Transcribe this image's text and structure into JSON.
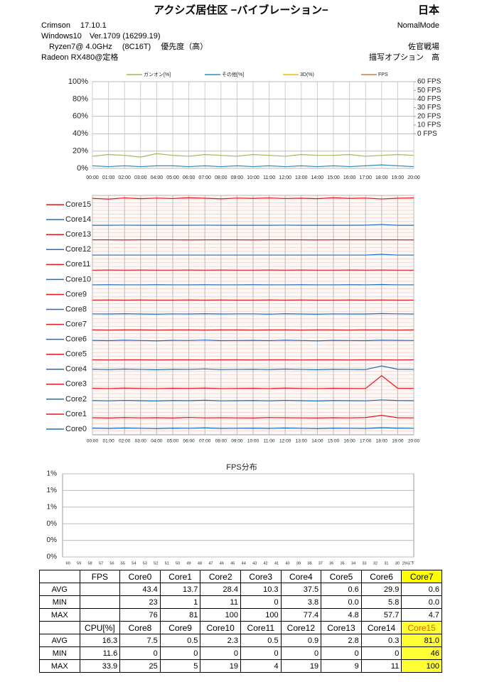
{
  "header": {
    "title": "アクシズ居住区 −バイブレーション−",
    "region": "日本",
    "left_lines": [
      "Crimson　 17.10.1",
      "Windows10　Ver.1709 (16299.19)",
      "　Ryzen7@ 4.0GHz　 (8C16T)　 優先度（高）",
      "Radeon RX480@定格"
    ],
    "right_lines": [
      "NomalMode",
      "",
      "佐官戦場",
      "描写オプション　高"
    ]
  },
  "chart_data": [
    {
      "type": "line",
      "grid": true,
      "categories": [
        "00:00",
        "01:00",
        "02:00",
        "03:00",
        "04:00",
        "05:00",
        "06:00",
        "07:00",
        "08:00",
        "09:00",
        "10:00",
        "11:00",
        "12:00",
        "13:00",
        "14:00",
        "15:00",
        "16:00",
        "17:00",
        "18:00",
        "19:00",
        "20:00"
      ],
      "ylim": [
        0,
        100
      ],
      "yticks": [
        {
          "value": 0,
          "label": "0%"
        },
        {
          "value": 20,
          "label": "20%"
        },
        {
          "value": 40,
          "label": "40%"
        },
        {
          "value": 60,
          "label": "60%"
        },
        {
          "value": 80,
          "label": "80%"
        },
        {
          "value": 100,
          "label": "100%"
        }
      ],
      "y2lim": [
        -40,
        60
      ],
      "y2ticks": [
        {
          "value": 0,
          "label": "0 FPS"
        },
        {
          "value": 10,
          "label": "10 FPS"
        },
        {
          "value": 20,
          "label": "20 FPS"
        },
        {
          "value": 30,
          "label": "30 FPS"
        },
        {
          "value": 40,
          "label": "40 FPS"
        },
        {
          "value": 50,
          "label": "50 FPS"
        },
        {
          "value": 60,
          "label": "60 FPS"
        }
      ],
      "series": [
        {
          "name": "ガンオン[%]",
          "color": "#9bbb59",
          "values": [
            14,
            16,
            15,
            13,
            17,
            15,
            14,
            16,
            15,
            14,
            16,
            15,
            14,
            16,
            15,
            15,
            16,
            14,
            15,
            16,
            15
          ]
        },
        {
          "name": "その他[%]",
          "color": "#2e8bc0",
          "values": [
            3,
            2,
            3,
            2,
            3,
            3,
            2,
            3,
            2,
            3,
            2,
            3,
            2,
            3,
            2,
            3,
            2,
            3,
            4,
            3,
            2
          ]
        },
        {
          "name": "3D(%)",
          "color": "#f0c000",
          "values": [
            null,
            null,
            null,
            null,
            null,
            null,
            null,
            null,
            null,
            null,
            null,
            null,
            null,
            null,
            null,
            null,
            null,
            null,
            null,
            null,
            null
          ]
        },
        {
          "name": "FPS",
          "color": "#c0804d",
          "axis": "y2",
          "values": [
            null,
            null,
            null,
            null,
            null,
            null,
            null,
            null,
            null,
            null,
            null,
            null,
            null,
            null,
            null,
            null,
            null,
            null,
            null,
            null,
            null
          ]
        }
      ]
    },
    {
      "type": "strip",
      "grid": true,
      "ylim": [
        0,
        100
      ],
      "categories": [
        "00:00",
        "01:00",
        "02:00",
        "03:00",
        "04:00",
        "05:00",
        "06:00",
        "07:00",
        "08:00",
        "09:00",
        "10:00",
        "11:00",
        "12:00",
        "13:00",
        "14:00",
        "15:00",
        "16:00",
        "17:00",
        "18:00",
        "19:00",
        "20:00"
      ],
      "series": [
        {
          "name": "Core0",
          "color": "#1a6fc4",
          "values": [
            44,
            42,
            45,
            43,
            41,
            44,
            43,
            46,
            42,
            43,
            44,
            42,
            45,
            43,
            41,
            44,
            43,
            42,
            47,
            44,
            43
          ]
        },
        {
          "name": "Core1",
          "color": "#e8141b",
          "values": [
            14,
            12,
            15,
            13,
            14,
            12,
            16,
            13,
            14,
            13,
            12,
            15,
            14,
            13,
            12,
            14,
            13,
            15,
            30,
            14,
            13
          ]
        },
        {
          "name": "Core2",
          "color": "#1a6fc4",
          "values": [
            29,
            27,
            30,
            28,
            26,
            29,
            28,
            31,
            27,
            28,
            29,
            27,
            30,
            28,
            26,
            29,
            28,
            27,
            33,
            29,
            28
          ]
        },
        {
          "name": "Core3",
          "color": "#e8141b",
          "values": [
            11,
            9,
            12,
            10,
            9,
            11,
            10,
            12,
            9,
            10,
            11,
            9,
            12,
            10,
            9,
            11,
            10,
            9,
            95,
            11,
            10
          ]
        },
        {
          "name": "Core4",
          "color": "#1a6fc4",
          "values": [
            38,
            36,
            39,
            37,
            35,
            38,
            37,
            40,
            36,
            37,
            38,
            36,
            39,
            37,
            35,
            38,
            37,
            36,
            60,
            38,
            37
          ]
        },
        {
          "name": "Core5",
          "color": "#e8141b",
          "values": [
            1,
            0,
            1,
            1,
            0,
            1,
            1,
            0,
            1,
            1,
            0,
            1,
            1,
            0,
            1,
            1,
            0,
            1,
            1,
            0,
            1
          ]
        },
        {
          "name": "Core6",
          "color": "#1a6fc4",
          "values": [
            31,
            29,
            32,
            30,
            28,
            31,
            30,
            33,
            29,
            30,
            31,
            29,
            32,
            30,
            28,
            31,
            30,
            29,
            32,
            31,
            30
          ]
        },
        {
          "name": "Core7",
          "color": "#e8141b",
          "values": [
            1,
            0,
            1,
            1,
            0,
            1,
            1,
            0,
            1,
            1,
            0,
            1,
            1,
            0,
            1,
            1,
            0,
            1,
            1,
            0,
            1
          ]
        },
        {
          "name": "Core8",
          "color": "#1a6fc4",
          "values": [
            8,
            7,
            9,
            7,
            6,
            8,
            7,
            9,
            7,
            8,
            8,
            6,
            9,
            7,
            6,
            8,
            7,
            7,
            10,
            8,
            7
          ]
        },
        {
          "name": "Core9",
          "color": "#e8141b",
          "values": [
            0,
            1,
            0,
            1,
            0,
            0,
            1,
            0,
            1,
            0,
            0,
            1,
            0,
            1,
            0,
            0,
            1,
            0,
            1,
            0,
            0
          ]
        },
        {
          "name": "Core10",
          "color": "#1a6fc4",
          "values": [
            2,
            3,
            2,
            2,
            3,
            2,
            2,
            3,
            2,
            2,
            3,
            2,
            2,
            3,
            2,
            2,
            3,
            2,
            4,
            2,
            2
          ]
        },
        {
          "name": "Core11",
          "color": "#e8141b",
          "values": [
            0,
            1,
            0,
            1,
            0,
            0,
            1,
            0,
            1,
            0,
            0,
            1,
            0,
            1,
            0,
            0,
            1,
            0,
            1,
            0,
            0
          ]
        },
        {
          "name": "Core12",
          "color": "#1a6fc4",
          "values": [
            1,
            1,
            1,
            1,
            1,
            1,
            1,
            1,
            1,
            1,
            1,
            1,
            1,
            1,
            1,
            1,
            1,
            1,
            6,
            1,
            1
          ]
        },
        {
          "name": "Core13",
          "color": "#e8141b",
          "values": [
            3,
            3,
            2,
            3,
            3,
            3,
            2,
            3,
            3,
            3,
            2,
            3,
            3,
            3,
            2,
            3,
            3,
            3,
            3,
            3,
            2
          ]
        },
        {
          "name": "Core14",
          "color": "#1a6fc4",
          "values": [
            0,
            0,
            1,
            0,
            0,
            0,
            0,
            1,
            0,
            0,
            0,
            0,
            1,
            0,
            0,
            0,
            0,
            1,
            5,
            0,
            0
          ]
        },
        {
          "name": "Core15",
          "color": "#e8141b",
          "values": [
            80,
            75,
            83,
            78,
            82,
            79,
            84,
            81,
            77,
            82,
            80,
            83,
            79,
            81,
            78,
            84,
            80,
            82,
            76,
            81,
            83
          ]
        }
      ]
    },
    {
      "type": "bar",
      "title": "FPS分布",
      "grid": true,
      "categories": [
        "60",
        "59",
        "58",
        "57",
        "56",
        "55",
        "54",
        "53",
        "52",
        "51",
        "50",
        "49",
        "48",
        "47",
        "46",
        "45",
        "44",
        "43",
        "42",
        "41",
        "40",
        "39",
        "38",
        "37",
        "36",
        "35",
        "34",
        "33",
        "32",
        "31",
        "30",
        "29以下"
      ],
      "ylim": [
        0,
        1.25
      ],
      "yticks": [
        {
          "value": 0,
          "label": "0%"
        },
        {
          "value": 0.25,
          "label": "0%"
        },
        {
          "value": 0.5,
          "label": "0%"
        },
        {
          "value": 0.75,
          "label": "1%"
        },
        {
          "value": 1,
          "label": "1%"
        },
        {
          "value": 1.25,
          "label": "1%"
        }
      ]
    }
  ],
  "table": {
    "rows": [
      [
        null,
        "FPS",
        "Core0",
        "Core1",
        "Core2",
        "Core3",
        "Core4",
        "Core5",
        "Core6",
        "Core7"
      ],
      [
        "AVG",
        null,
        "43.4",
        "13.7",
        "28.4",
        "10.3",
        "37.5",
        "0.6",
        "29.9",
        "0.6"
      ],
      [
        "MIN",
        null,
        "23",
        "1",
        "11",
        "0",
        "3.8",
        "0.0",
        "5.8",
        "0.0"
      ],
      [
        "MAX",
        null,
        "76",
        "81",
        "100",
        "100",
        "77.4",
        "4.8",
        "57.7",
        "4.7"
      ],
      [
        null,
        "CPU[%]",
        "Core8",
        "Core9",
        "Core10",
        "Core11",
        "Core12",
        "Core13",
        "Core14",
        "Core15"
      ],
      [
        "AVG",
        "16.3",
        "7.5",
        "0.5",
        "2.3",
        "0.5",
        "0.9",
        "2.8",
        "0.3",
        "81.0"
      ],
      [
        "MIN",
        "11.6",
        "0",
        "0",
        "0",
        "0",
        "0",
        "0",
        "0",
        "46"
      ],
      [
        "MAX",
        "33.9",
        "25",
        "5",
        "19",
        "4",
        "19",
        "9",
        "11",
        "100"
      ]
    ]
  }
}
